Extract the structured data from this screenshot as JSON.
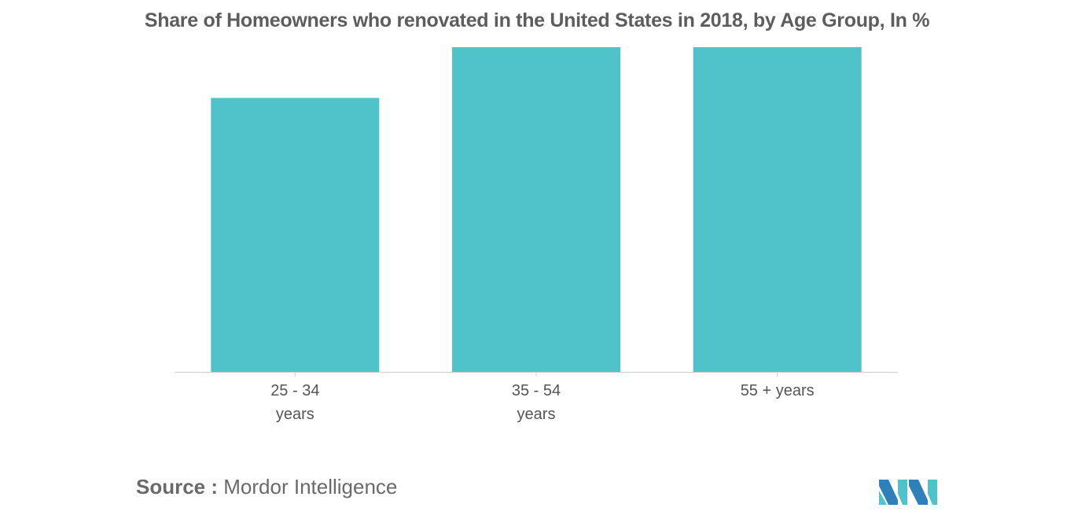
{
  "chart_data": {
    "type": "bar",
    "title": "Share of Homeowners who renovated in the United States in 2018, by Age Group, In %",
    "categories": [
      [
        "25 - 34",
        "years"
      ],
      [
        "35 - 54",
        "years"
      ],
      [
        "55 + years"
      ]
    ],
    "values": [
      54,
      64,
      64
    ],
    "ylim": [
      0,
      64
    ],
    "xlabel": "",
    "ylabel": "",
    "grid": false,
    "legend": "none",
    "bar_color": "#4fc3c9",
    "axis_color": "#cfcfcf"
  },
  "source": {
    "label": "Source :",
    "value": "Mordor Intelligence"
  },
  "logo": {
    "icon": "mordor-intelligence-logo-icon",
    "colors": [
      "#2f7fb8",
      "#4fc3c9"
    ]
  }
}
